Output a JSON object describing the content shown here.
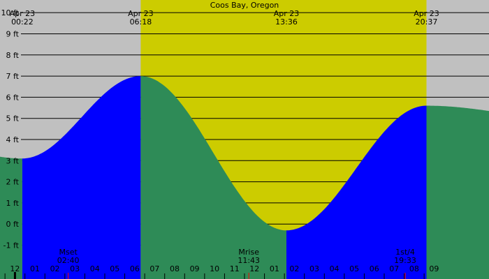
{
  "chart_data": {
    "type": "area",
    "title": "Coos Bay, Oregon",
    "ylabel": "",
    "xlabel": "",
    "ylim": [
      -2.6,
      10.6
    ],
    "y_ticks": [
      10,
      9,
      8,
      7,
      6,
      5,
      4,
      3,
      2,
      1,
      0,
      -1
    ],
    "y_tick_suffix": " ft",
    "x_range_hours": [
      -0.75,
      23.75
    ],
    "tide_extremes": [
      {
        "date": "Apr 23",
        "time": "00:22",
        "hour": 0.367,
        "height_ft": 3.1,
        "kind": "low"
      },
      {
        "date": "Apr 23",
        "time": "06:18",
        "hour": 6.3,
        "height_ft": 7.0,
        "kind": "high"
      },
      {
        "date": "Apr 23",
        "time": "13:36",
        "hour": 13.6,
        "height_ft": -0.3,
        "kind": "low"
      },
      {
        "date": "Apr 23",
        "time": "20:37",
        "hour": 20.617,
        "height_ft": 5.6,
        "kind": "high"
      }
    ],
    "boundary_height_ft": {
      "start": 3.6,
      "end": 5.3
    },
    "day_period": {
      "start_hour": 6.3,
      "end_hour": 20.617
    },
    "hour_labels": [
      "11",
      "12",
      "01",
      "02",
      "03",
      "04",
      "05",
      "06",
      "07",
      "08",
      "09",
      "10",
      "11",
      "12",
      "01",
      "02",
      "03",
      "04",
      "05",
      "06",
      "07",
      "08",
      "09"
    ],
    "hour_label_start": -1,
    "moon_events": [
      {
        "label": "Mset",
        "time": "02:40",
        "hour": 2.667
      },
      {
        "label": "Mrise",
        "time": "11:43",
        "hour": 11.717
      },
      {
        "label": "1st/4",
        "time": "19:33",
        "hour": 19.55
      }
    ],
    "colors": {
      "night_background": "#c0c0c0",
      "day_background": "#cccc00",
      "water_falling": "#2e8b57",
      "water_rising": "#0000ff",
      "grid": "#000000",
      "moon_tick": "#ff0000"
    }
  }
}
